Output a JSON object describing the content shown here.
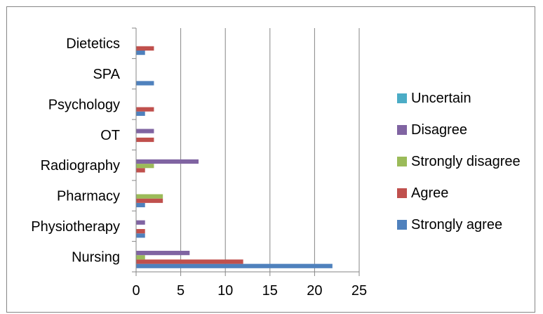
{
  "chart_data": {
    "type": "bar",
    "orientation": "horizontal",
    "categories": [
      "Nursing",
      "Physiotherapy",
      "Pharmacy",
      "Radiography",
      "OT",
      "Psychology",
      "SPA",
      "Dietetics"
    ],
    "series": [
      {
        "name": "Strongly agree",
        "color": "#4F81BD",
        "values": [
          22,
          1,
          1,
          0,
          0,
          1,
          2,
          1
        ]
      },
      {
        "name": "Agree",
        "color": "#C0504D",
        "values": [
          12,
          1,
          3,
          1,
          2,
          2,
          0,
          2
        ]
      },
      {
        "name": "Strongly disagree",
        "color": "#9BBB59",
        "values": [
          1,
          0,
          3,
          2,
          0,
          0,
          0,
          0
        ]
      },
      {
        "name": "Disagree",
        "color": "#8064A2",
        "values": [
          6,
          1,
          0,
          7,
          2,
          0,
          0,
          0
        ]
      },
      {
        "name": "Uncertain",
        "color": "#4BACC6",
        "values": [
          0,
          0,
          0,
          0,
          0,
          0,
          0,
          0
        ]
      }
    ],
    "legend_order": [
      "Uncertain",
      "Disagree",
      "Strongly disagree",
      "Agree",
      "Strongly agree"
    ],
    "xlim": [
      0,
      25
    ],
    "xticks": [
      "0",
      "5",
      "10",
      "15",
      "20",
      "25"
    ],
    "grid": "vertical major gridlines",
    "legend_position": "right",
    "title": "",
    "xlabel": "",
    "ylabel": ""
  }
}
